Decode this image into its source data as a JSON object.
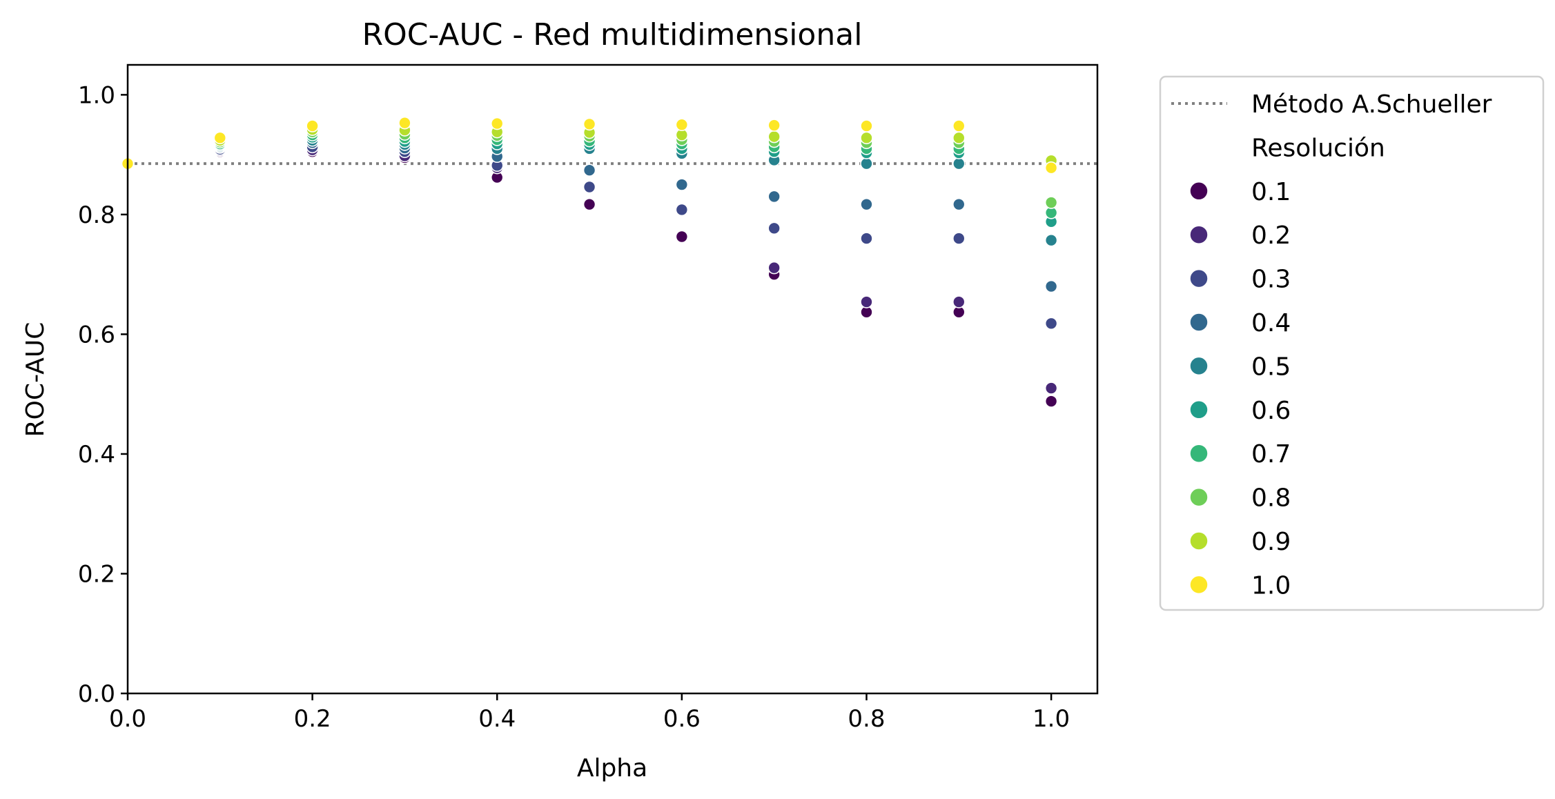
{
  "chart_data": {
    "type": "scatter",
    "title": "ROC-AUC - Red multidimensional",
    "xlabel": "Alpha",
    "ylabel": "ROC-AUC",
    "xlim": [
      0.0,
      1.05
    ],
    "ylim": [
      0.0,
      1.05
    ],
    "xticks": [
      "0.0",
      "0.2",
      "0.4",
      "0.6",
      "0.8",
      "1.0"
    ],
    "yticks": [
      "0.0",
      "0.2",
      "0.4",
      "0.6",
      "0.8",
      "1.0"
    ],
    "grid": false,
    "legend_position": "outside-right",
    "reference_line": {
      "label": "Método A.Schueller",
      "y": 0.885,
      "color": "#808080",
      "style": "dotted"
    },
    "legend_title": "Resolución",
    "x": [
      0.0,
      0.1,
      0.2,
      0.3,
      0.4,
      0.5,
      0.6,
      0.7,
      0.8,
      0.9,
      1.0
    ],
    "series": [
      {
        "name": "0.1",
        "color": "#440154",
        "values": [
          0.885,
          0.905,
          0.905,
          0.895,
          0.862,
          0.817,
          0.763,
          0.7,
          0.637,
          0.637,
          0.488
        ]
      },
      {
        "name": "0.2",
        "color": "#482878",
        "values": [
          0.885,
          0.907,
          0.908,
          0.898,
          0.878,
          0.846,
          0.808,
          0.711,
          0.654,
          0.654,
          0.51
        ]
      },
      {
        "name": "0.3",
        "color": "#3e4989",
        "values": [
          0.885,
          0.909,
          0.913,
          0.905,
          0.882,
          0.846,
          0.808,
          0.777,
          0.76,
          0.76,
          0.618
        ]
      },
      {
        "name": "0.4",
        "color": "#31688e",
        "values": [
          0.885,
          0.912,
          0.92,
          0.911,
          0.897,
          0.874,
          0.85,
          0.83,
          0.817,
          0.817,
          0.68
        ]
      },
      {
        "name": "0.5",
        "color": "#26828e",
        "values": [
          0.885,
          0.914,
          0.924,
          0.917,
          0.91,
          0.91,
          0.902,
          0.891,
          0.885,
          0.885,
          0.757
        ]
      },
      {
        "name": "0.6",
        "color": "#1f9e89",
        "values": [
          0.885,
          0.916,
          0.929,
          0.922,
          0.918,
          0.917,
          0.91,
          0.905,
          0.903,
          0.903,
          0.788
        ]
      },
      {
        "name": "0.7",
        "color": "#35b779",
        "values": [
          0.885,
          0.918,
          0.933,
          0.928,
          0.925,
          0.923,
          0.918,
          0.913,
          0.91,
          0.91,
          0.803
        ]
      },
      {
        "name": "0.8",
        "color": "#6ece58",
        "values": [
          0.885,
          0.921,
          0.938,
          0.934,
          0.932,
          0.931,
          0.925,
          0.922,
          0.92,
          0.92,
          0.82
        ]
      },
      {
        "name": "0.9",
        "color": "#b5de2b",
        "values": [
          0.885,
          0.924,
          0.942,
          0.941,
          0.938,
          0.937,
          0.933,
          0.93,
          0.928,
          0.928,
          0.89
        ]
      },
      {
        "name": "1.0",
        "color": "#fde725",
        "values": [
          0.885,
          0.928,
          0.948,
          0.953,
          0.952,
          0.951,
          0.95,
          0.949,
          0.948,
          0.948,
          0.878
        ]
      }
    ]
  }
}
